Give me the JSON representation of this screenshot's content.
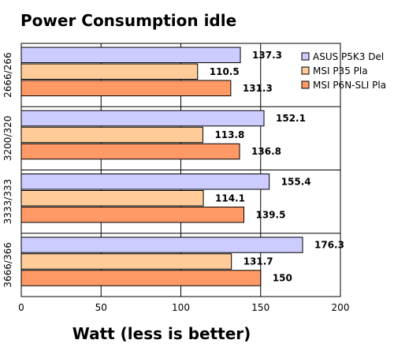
{
  "chart_data": {
    "type": "bar",
    "orientation": "horizontal",
    "title": "Power Consumption idle",
    "xlabel": "Watt (less is better)",
    "ylabel": "",
    "xlim": [
      0,
      200
    ],
    "xticks": [
      0,
      50,
      100,
      150,
      200
    ],
    "grid": true,
    "legend_position": "right",
    "categories": [
      "2666/266",
      "3200/320",
      "3333/333",
      "3666/366"
    ],
    "series": [
      {
        "name": "ASUS P5K3 Del",
        "color": "#ccccff",
        "values": [
          137.3,
          152.1,
          155.4,
          176.3
        ],
        "labels": [
          "137.3",
          "152.1",
          "155.4",
          "176.3"
        ]
      },
      {
        "name": "MSI P35 Pla",
        "color": "#ffcc99",
        "values": [
          110.5,
          113.8,
          114.1,
          131.7
        ],
        "labels": [
          "110.5",
          "113.8",
          "114.1",
          "131.7"
        ]
      },
      {
        "name": "MSI P6N-SLI Pla",
        "color": "#ff9966",
        "values": [
          131.3,
          136.8,
          139.5,
          150
        ],
        "labels": [
          "131.3",
          "136.8",
          "139.5",
          "150"
        ]
      }
    ]
  }
}
